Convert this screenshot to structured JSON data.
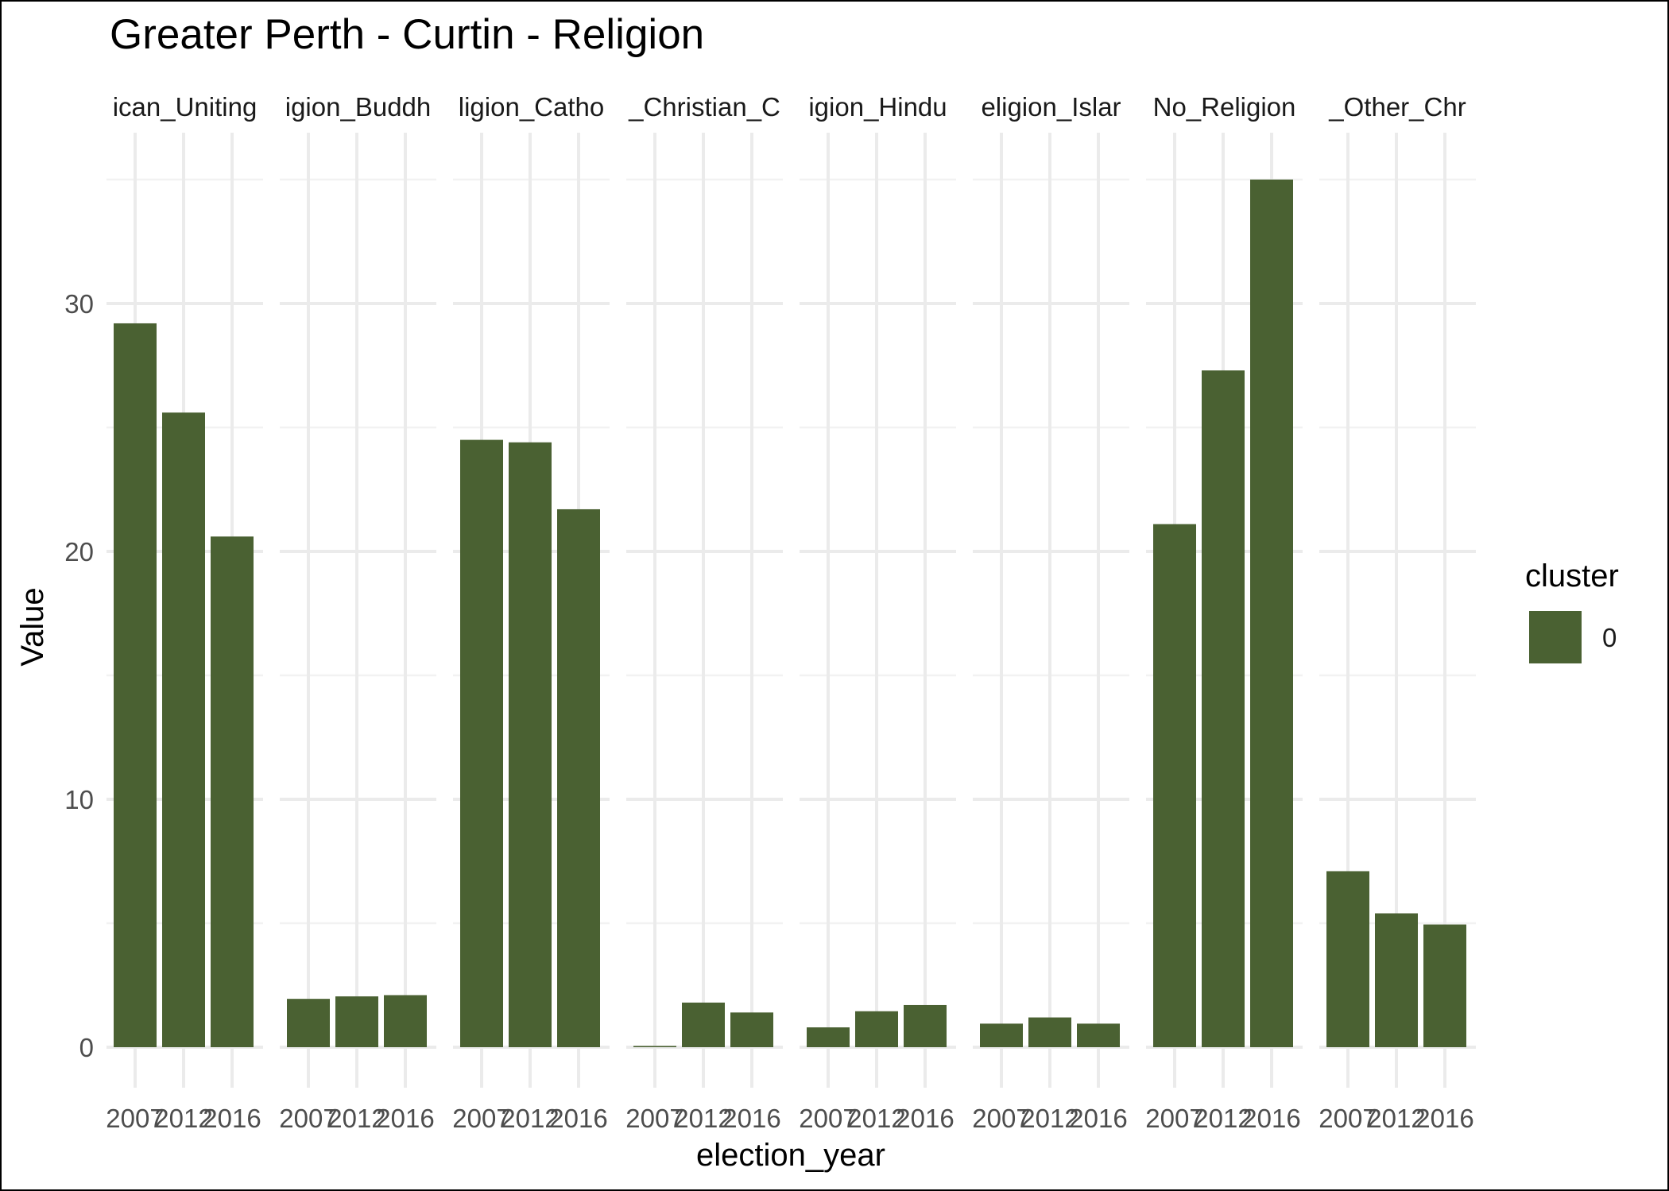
{
  "chart_data": {
    "type": "bar",
    "title": "Greater Perth - Curtin - Religion",
    "xlabel": "election_year",
    "ylabel": "Value",
    "ylim": [
      0,
      36.5
    ],
    "yticks": [
      0,
      10,
      20,
      30
    ],
    "grid": true,
    "legend": {
      "title": "cluster",
      "position": "right",
      "entries": [
        {
          "label": "0",
          "color": "#4a6132"
        }
      ]
    },
    "categories": [
      "2007",
      "2012",
      "2016"
    ],
    "facets": [
      {
        "label": "ican_Uniting",
        "values": [
          29.2,
          25.6,
          20.6
        ]
      },
      {
        "label": "igion_Buddh",
        "values": [
          1.95,
          2.05,
          2.1
        ]
      },
      {
        "label": "ligion_Catho",
        "values": [
          24.5,
          24.4,
          21.7
        ]
      },
      {
        "label": "_Christian_C",
        "values": [
          0.05,
          1.8,
          1.4
        ]
      },
      {
        "label": "igion_Hindu",
        "values": [
          0.8,
          1.45,
          1.7
        ]
      },
      {
        "label": "eligion_Islar",
        "values": [
          0.95,
          1.2,
          0.95
        ]
      },
      {
        "label": "No_Religion",
        "values": [
          21.1,
          27.3,
          35.0
        ]
      },
      {
        "label": "_Other_Chr",
        "values": [
          7.1,
          5.4,
          4.95
        ]
      }
    ]
  }
}
